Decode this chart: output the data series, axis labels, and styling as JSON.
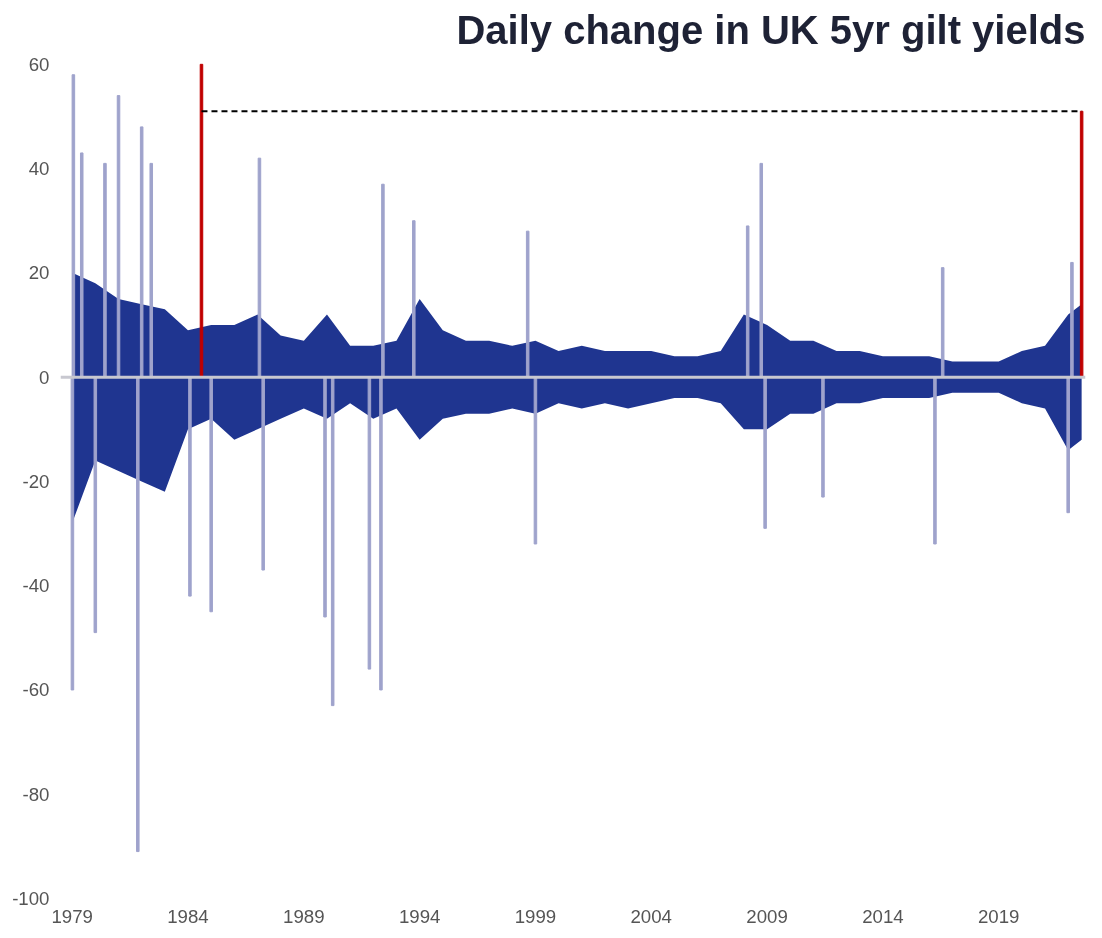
{
  "chart_data": {
    "type": "bar",
    "title": "Daily change in UK 5yr gilt yields",
    "xlim": [
      "1978-07",
      "2022-10"
    ],
    "ylim": [
      -100,
      60
    ],
    "xticks": [
      "1979",
      "1984",
      "1989",
      "1994",
      "1999",
      "2004",
      "2009",
      "2014",
      "2019"
    ],
    "yticks": [
      -100,
      -80,
      -60,
      -40,
      -20,
      0,
      20,
      40,
      60
    ],
    "grid": false,
    "ref_lines": [
      {
        "axis": "y",
        "value": 0,
        "color": "#c8c8d0"
      }
    ],
    "series": [
      {
        "type": "area",
        "color": "#1f3590",
        "x": [
          "1979-01",
          "1980-01",
          "1981-01",
          "1982-01",
          "1983-01",
          "1984-01",
          "1985-01",
          "1986-01",
          "1987-01",
          "1988-01",
          "1989-01",
          "1990-01",
          "1991-01",
          "1992-01",
          "1993-01",
          "1994-01",
          "1995-01",
          "1996-01",
          "1997-01",
          "1998-01",
          "1999-01",
          "2000-01",
          "2001-01",
          "2002-01",
          "2003-01",
          "2004-01",
          "2005-01",
          "2006-01",
          "2007-01",
          "2008-01",
          "2009-01",
          "2010-01",
          "2011-01",
          "2012-01",
          "2013-01",
          "2014-01",
          "2015-01",
          "2016-01",
          "2017-01",
          "2018-01",
          "2019-01",
          "2020-01",
          "2021-01",
          "2022-01",
          "2022-08"
        ],
        "values": [
          20,
          18,
          15,
          14,
          13,
          9,
          10,
          10,
          12,
          8,
          7,
          12,
          6,
          6,
          7,
          15,
          9,
          7,
          7,
          6,
          7,
          5,
          6,
          5,
          5,
          5,
          4,
          4,
          5,
          12,
          10,
          7,
          7,
          5,
          5,
          4,
          4,
          4,
          3,
          3,
          3,
          5,
          6,
          12,
          14
        ]
      },
      {
        "type": "area",
        "color": "#1f3590",
        "x": [
          "1979-01",
          "1980-01",
          "1981-01",
          "1982-01",
          "1983-01",
          "1984-01",
          "1985-01",
          "1986-01",
          "1987-01",
          "1988-01",
          "1989-01",
          "1990-01",
          "1991-01",
          "1992-01",
          "1993-01",
          "1994-01",
          "1995-01",
          "1996-01",
          "1997-01",
          "1998-01",
          "1999-01",
          "2000-01",
          "2001-01",
          "2002-01",
          "2003-01",
          "2004-01",
          "2005-01",
          "2006-01",
          "2007-01",
          "2008-01",
          "2009-01",
          "2010-01",
          "2011-01",
          "2012-01",
          "2013-01",
          "2014-01",
          "2015-01",
          "2016-01",
          "2017-01",
          "2018-01",
          "2019-01",
          "2020-01",
          "2021-01",
          "2022-01",
          "2022-08"
        ],
        "values": [
          -28,
          -16,
          -18,
          -20,
          -22,
          -10,
          -8,
          -12,
          -10,
          -8,
          -6,
          -8,
          -5,
          -8,
          -6,
          -12,
          -8,
          -7,
          -7,
          -6,
          -7,
          -5,
          -6,
          -5,
          -6,
          -5,
          -4,
          -4,
          -5,
          -10,
          -10,
          -7,
          -7,
          -5,
          -5,
          -4,
          -4,
          -4,
          -3,
          -3,
          -3,
          -5,
          -6,
          -14,
          -12
        ]
      },
      {
        "color": "#9fa3cc",
        "x": [
          "1979-01-05",
          "1979-01-20",
          "1979-06",
          "1980-01",
          "1980-06",
          "1981-01",
          "1981-11",
          "1982-01",
          "1982-06",
          "1984-02",
          "1985-01",
          "1987-02",
          "1987-04",
          "1989-12",
          "1990-04",
          "1991-11",
          "1992-05",
          "1992-06",
          "1993-10",
          "1998-09",
          "1999-01",
          "2008-03",
          "2008-10",
          "2008-12",
          "2011-06",
          "2016-04",
          "2016-08",
          "2022-01",
          "2022-03"
        ],
        "values": [
          -60,
          58,
          43,
          -49,
          41,
          54,
          -91,
          48,
          41,
          -42,
          -45,
          42,
          -37,
          -46,
          -63,
          -56,
          -60,
          37,
          30,
          28,
          -32,
          29,
          41,
          -29,
          -23,
          -32,
          21,
          -26,
          22
        ]
      },
      {
        "color": "#c00000",
        "x": [
          "1984-08",
          "2022-08"
        ],
        "values": [
          60,
          51
        ]
      },
      {
        "type": "line",
        "color": "#000000",
        "line_style": "dashed",
        "x": [
          "1984-08",
          "2022-08"
        ],
        "values": [
          51,
          51
        ]
      }
    ]
  }
}
